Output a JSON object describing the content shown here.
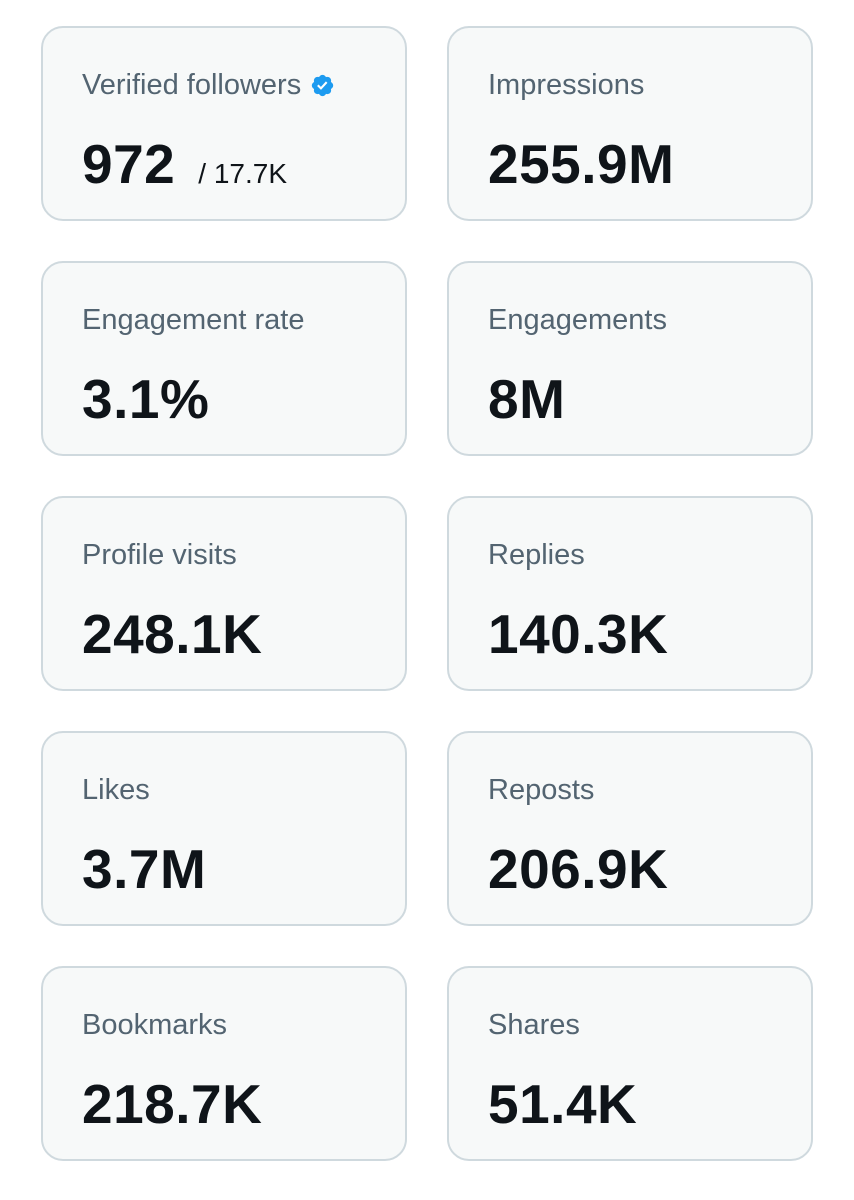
{
  "colors": {
    "card_background": "#f7f9f9",
    "card_border": "#cfd9de",
    "label_text": "#536471",
    "value_text": "#0f1419",
    "verified_badge": "#1d9bf0"
  },
  "cards": [
    {
      "label": "Verified followers",
      "value": "972",
      "sub": "/ 17.7K",
      "icon": "verified-badge-icon"
    },
    {
      "label": "Impressions",
      "value": "255.9M"
    },
    {
      "label": "Engagement rate",
      "value": "3.1%"
    },
    {
      "label": "Engagements",
      "value": "8M"
    },
    {
      "label": "Profile visits",
      "value": "248.1K"
    },
    {
      "label": "Replies",
      "value": "140.3K"
    },
    {
      "label": "Likes",
      "value": "3.7M"
    },
    {
      "label": "Reposts",
      "value": "206.9K"
    },
    {
      "label": "Bookmarks",
      "value": "218.7K"
    },
    {
      "label": "Shares",
      "value": "51.4K"
    }
  ]
}
